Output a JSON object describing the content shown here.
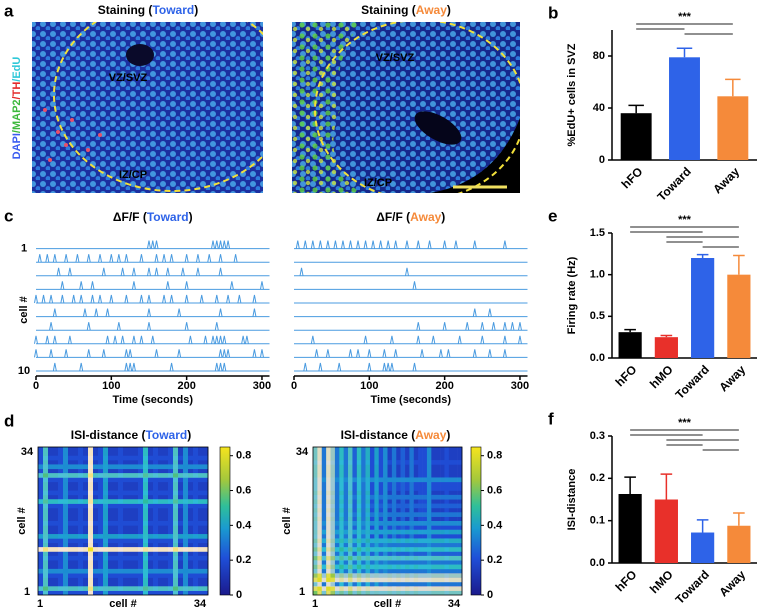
{
  "panel_a": {
    "label": "a",
    "stain": [
      {
        "text": "DAPI",
        "color": "#3a5cf0"
      },
      {
        "text": "/MAP2",
        "color": "#3cb83c"
      },
      {
        "text": "/TH",
        "color": "#e42a2a"
      },
      {
        "text": "/EdU",
        "color": "#2fc8d8"
      }
    ],
    "images": [
      {
        "title": [
          "Staining (",
          "Toward",
          ")"
        ],
        "title_colors": [
          "#000000",
          "#2e63e8",
          "#000000"
        ],
        "regions": [
          "VZ/SVZ",
          "IZ/CP"
        ]
      },
      {
        "title": [
          "Staining (",
          "Away",
          ")"
        ],
        "title_colors": [
          "#000000",
          "#f58a3a",
          "#000000"
        ],
        "regions": [
          "VZ/SVZ",
          "IZ/CP"
        ]
      }
    ]
  },
  "chart_data": [
    {
      "type": "bar",
      "label": "b",
      "categories": [
        "hFO",
        "Toward",
        "Away"
      ],
      "colors": [
        "#000000",
        "#2e63e8",
        "#f58a3a"
      ],
      "values": [
        36,
        79,
        49
      ],
      "errors": [
        6,
        7,
        13
      ],
      "ylim": [
        0,
        100
      ],
      "yticks": [
        0,
        40,
        80
      ],
      "ylabel": "%EdU+ cells in SVZ",
      "significance": "***"
    },
    {
      "type": "traces",
      "label": "c",
      "xlim": [
        0,
        310
      ],
      "xticks": [
        0,
        100,
        200,
        300
      ],
      "xlabel": "Time (seconds)",
      "ylabels": [
        "1",
        "cell #",
        "10"
      ],
      "color": "#4a9be0",
      "plots": [
        {
          "title": [
            "ΔF/F (",
            "Toward",
            ")"
          ],
          "title_colors": [
            "#000000",
            "#2e63e8",
            "#000000"
          ],
          "series": [
            {
              "values": [
                150,
                155,
                160,
                235,
                240,
                245,
                250,
                255
              ]
            },
            {
              "values": [
                5,
                15,
                25,
                40,
                55,
                70,
                85,
                100,
                110,
                120,
                140,
                160,
                170,
                180,
                200,
                215,
                230,
                245,
                265
              ]
            },
            {
              "values": [
                30,
                45,
                90,
                115,
                130,
                150,
                160,
                175,
                195,
                215,
                245
              ]
            },
            {
              "values": [
                35,
                60,
                75,
                130,
                175,
                200,
                260,
                300
              ]
            },
            {
              "values": [
                0,
                10,
                20,
                35,
                50,
                60,
                75,
                85,
                100,
                120,
                140,
                150,
                170,
                180,
                200,
                220,
                240,
                255,
                270,
                290
              ]
            },
            {
              "values": [
                25,
                65,
                80,
                95,
                150,
                190,
                245,
                290
              ]
            },
            {
              "values": [
                20,
                70,
                110,
                150,
                200,
                240
              ]
            },
            {
              "values": [
                0,
                15,
                25,
                45,
                95,
                105,
                115,
                130,
                140,
                155,
                205,
                225,
                235,
                240,
                245,
                250,
                275,
                280
              ]
            },
            {
              "values": [
                0,
                20,
                40,
                70,
                90,
                120,
                125,
                160,
                190,
                245,
                250,
                255,
                290,
                300
              ]
            },
            {
              "values": [
                25,
                60,
                120,
                125,
                130,
                180,
                240,
                245,
                250
              ]
            }
          ]
        },
        {
          "title": [
            "ΔF/F (",
            "Away",
            ")"
          ],
          "title_colors": [
            "#000000",
            "#f58a3a",
            "#000000"
          ],
          "series": [
            {
              "values": [
                5,
                15,
                25,
                35,
                45,
                55,
                65,
                75,
                85,
                95,
                105,
                115,
                125,
                135,
                150,
                165,
                180,
                200,
                215,
                240,
                280
              ]
            },
            {
              "values": []
            },
            {
              "values": [
                10,
                150
              ]
            },
            {
              "values": [
                160
              ]
            },
            {
              "values": []
            },
            {
              "values": [
                240,
                260
              ]
            },
            {
              "values": [
                165,
                200,
                230,
                250,
                265,
                280,
                290,
                300
              ]
            },
            {
              "values": [
                25,
                95,
                130,
                165,
                185,
                220,
                250,
                280,
                300
              ]
            },
            {
              "values": [
                30,
                45,
                75,
                85,
                100,
                120,
                135,
                170,
                195,
                205,
                240,
                260,
                280
              ]
            },
            {
              "values": [
                15,
                35,
                60,
                100,
                120,
                125,
                130,
                160
              ]
            }
          ]
        }
      ]
    },
    {
      "type": "heatmap",
      "label": "d",
      "clim": [
        0,
        0.85
      ],
      "cticks": [
        0,
        0.2,
        0.4,
        0.6,
        0.8
      ],
      "colormap": "parula",
      "tick_labels": [
        "1",
        "34"
      ],
      "axis_label": "cell #",
      "plots": [
        {
          "title": [
            "ISI-distance (",
            "Toward",
            ")"
          ],
          "title_colors": [
            "#000000",
            "#2e63e8",
            "#000000"
          ],
          "values": [
            0.2,
            0.55,
            0.15,
            0.15,
            0.2,
            0.35,
            0.15,
            0.15,
            0.2,
            0.15,
            0.85,
            0.15,
            0.2,
            0.4,
            0.15,
            0.15,
            0.2,
            0.15,
            0.15,
            0.15,
            0.2,
            0.5,
            0.15,
            0.2,
            0.15,
            0.15,
            0.2,
            0.55,
            0.15,
            0.35,
            0.15,
            0.2,
            0.15,
            0.15
          ]
        },
        {
          "title": [
            "ISI-distance (",
            "Away",
            ")"
          ],
          "title_colors": [
            "#000000",
            "#f58a3a",
            "#000000"
          ],
          "values": [
            0.6,
            0.8,
            0.3,
            0.8,
            0.65,
            0.3,
            0.5,
            0.3,
            0.55,
            0.25,
            0.5,
            0.3,
            0.45,
            0.2,
            0.4,
            0.2,
            0.35,
            0.15,
            0.3,
            0.15,
            0.25,
            0.15,
            0.3,
            0.15,
            0.2,
            0.2,
            0.35,
            0.15,
            0.15,
            0.15,
            0.2,
            0.15,
            0.15,
            0.15
          ]
        }
      ]
    },
    {
      "type": "bar",
      "label": "e",
      "categories": [
        "hFO",
        "hMO",
        "Toward",
        "Away"
      ],
      "colors": [
        "#000000",
        "#e8302a",
        "#2e63e8",
        "#f58a3a"
      ],
      "values": [
        0.31,
        0.25,
        1.2,
        1.0
      ],
      "errors": [
        0.03,
        0.02,
        0.04,
        0.23
      ],
      "ylim": [
        0,
        1.5
      ],
      "yticks": [
        {
          "value": 0,
          "label": "0.0"
        },
        0.5,
        {
          "value": 1,
          "label": "1.0"
        },
        1.5
      ],
      "ylabel": "Firing rate (Hz)",
      "significance": "***"
    },
    {
      "type": "bar",
      "label": "f",
      "categories": [
        "hFO",
        "hMO",
        "Toward",
        "Away"
      ],
      "colors": [
        "#000000",
        "#e8302a",
        "#2e63e8",
        "#f58a3a"
      ],
      "values": [
        0.163,
        0.15,
        0.072,
        0.088
      ],
      "errors": [
        0.04,
        0.06,
        0.03,
        0.03
      ],
      "ylim": [
        0,
        0.3
      ],
      "yticks": [
        {
          "value": 0,
          "label": "0.0"
        },
        0.1,
        0.2,
        0.3
      ],
      "ylabel": "ISI-distance",
      "significance": "***"
    }
  ]
}
